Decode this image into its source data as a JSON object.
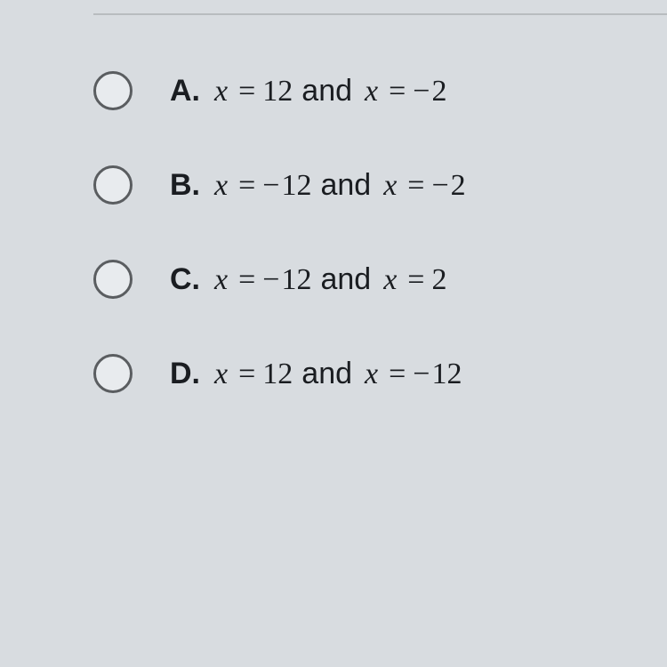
{
  "background_color": "#d8dce0",
  "radio_border_color": "#5a5d60",
  "radio_fill_color": "#e8ebee",
  "text_color": "#1a1d21",
  "line_color": "#b8bcbf",
  "font_size": 34,
  "letter_font_weight": "bold",
  "math_var_font": "Georgia, serif",
  "and_word": "and",
  "options": [
    {
      "letter": "A.",
      "eq1_var": "x",
      "eq1_op": "=",
      "eq1_val": "12",
      "eq2_var": "x",
      "eq2_op": "=",
      "eq2_neg": "−",
      "eq2_val": "2"
    },
    {
      "letter": "B.",
      "eq1_var": "x",
      "eq1_op": "=",
      "eq1_neg": "−",
      "eq1_val": "12",
      "eq2_var": "x",
      "eq2_op": "=",
      "eq2_neg": "−",
      "eq2_val": "2"
    },
    {
      "letter": "C.",
      "eq1_var": "x",
      "eq1_op": "=",
      "eq1_neg": "−",
      "eq1_val": "12",
      "eq2_var": "x",
      "eq2_op": "=",
      "eq2_val": "2"
    },
    {
      "letter": "D.",
      "eq1_var": "x",
      "eq1_op": "=",
      "eq1_val": "12",
      "eq2_var": "x",
      "eq2_op": "=",
      "eq2_neg": "−",
      "eq2_val": "12"
    }
  ]
}
